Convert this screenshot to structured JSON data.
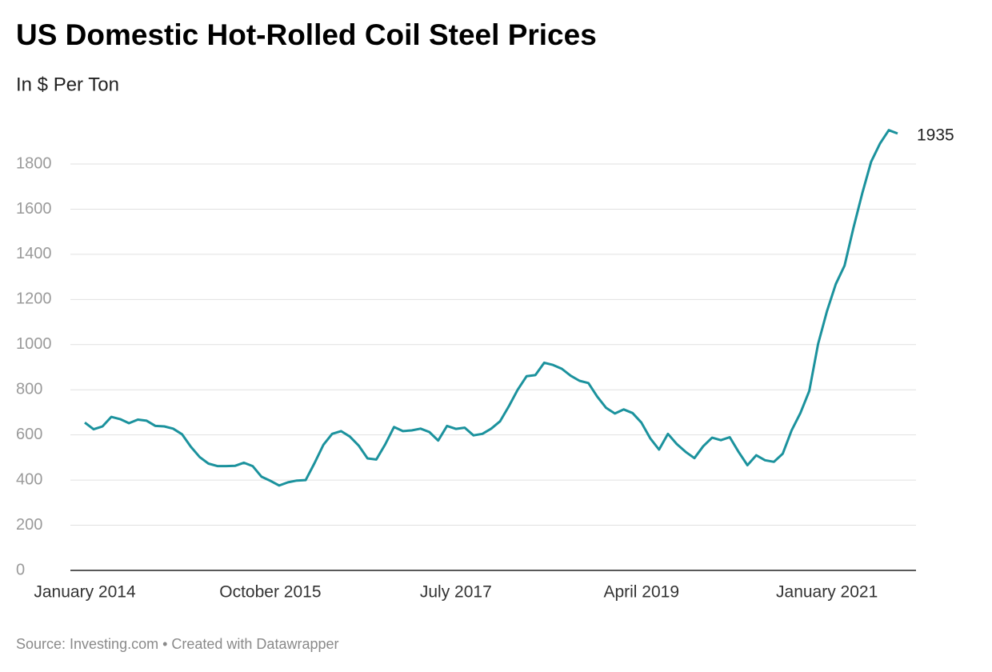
{
  "chart_data": {
    "type": "line",
    "title": "US Domestic Hot-Rolled Coil Steel Prices",
    "subtitle": "In $ Per Ton",
    "source": "Source: Investing.com • Created with Datawrapper",
    "color": "#1b929d",
    "x": [
      "2014-01",
      "2014-02",
      "2014-03",
      "2014-04",
      "2014-05",
      "2014-06",
      "2014-07",
      "2014-08",
      "2014-09",
      "2014-10",
      "2014-11",
      "2014-12",
      "2015-01",
      "2015-02",
      "2015-03",
      "2015-04",
      "2015-05",
      "2015-06",
      "2015-07",
      "2015-08",
      "2015-09",
      "2015-10",
      "2015-11",
      "2015-12",
      "2016-01",
      "2016-02",
      "2016-03",
      "2016-04",
      "2016-05",
      "2016-06",
      "2016-07",
      "2016-08",
      "2016-09",
      "2016-10",
      "2016-11",
      "2016-12",
      "2017-01",
      "2017-02",
      "2017-03",
      "2017-04",
      "2017-05",
      "2017-06",
      "2017-07",
      "2017-08",
      "2017-09",
      "2017-10",
      "2017-11",
      "2017-12",
      "2018-01",
      "2018-02",
      "2018-03",
      "2018-04",
      "2018-05",
      "2018-06",
      "2018-07",
      "2018-08",
      "2018-09",
      "2018-10",
      "2018-11",
      "2018-12",
      "2019-01",
      "2019-02",
      "2019-03",
      "2019-04",
      "2019-05",
      "2019-06",
      "2019-07",
      "2019-08",
      "2019-09",
      "2019-10",
      "2019-11",
      "2019-12",
      "2020-01",
      "2020-02",
      "2020-03",
      "2020-04",
      "2020-05",
      "2020-06",
      "2020-07",
      "2020-08",
      "2020-09",
      "2020-10",
      "2020-11",
      "2020-12",
      "2021-01",
      "2021-02",
      "2021-03",
      "2021-04",
      "2021-05",
      "2021-06",
      "2021-07",
      "2021-08",
      "2021-09"
    ],
    "values": [
      655,
      625,
      638,
      680,
      670,
      652,
      668,
      663,
      640,
      638,
      628,
      603,
      548,
      502,
      473,
      462,
      462,
      463,
      477,
      462,
      415,
      397,
      376,
      390,
      398,
      400,
      475,
      556,
      605,
      617,
      593,
      553,
      496,
      491,
      558,
      635,
      617,
      620,
      628,
      613,
      575,
      640,
      627,
      632,
      598,
      605,
      628,
      660,
      727,
      800,
      860,
      865,
      920,
      910,
      893,
      862,
      840,
      830,
      770,
      720,
      695,
      713,
      697,
      655,
      585,
      535,
      605,
      560,
      525,
      497,
      550,
      588,
      577,
      590,
      525,
      466,
      510,
      488,
      481,
      517,
      620,
      697,
      795,
      1003,
      1148,
      1268,
      1350,
      1517,
      1670,
      1810,
      1890,
      1950,
      1935
    ],
    "xlim": [
      "2014-01",
      "2021-09"
    ],
    "xticks": [
      {
        "value": "2014-01",
        "label": "January 2014"
      },
      {
        "value": "2015-10",
        "label": "October 2015"
      },
      {
        "value": "2017-07",
        "label": "July 2017"
      },
      {
        "value": "2019-04",
        "label": "April 2019"
      },
      {
        "value": "2021-01",
        "label": "January 2021"
      }
    ],
    "ylim": [
      0,
      2000
    ],
    "yticks": [
      0,
      200,
      400,
      600,
      800,
      1000,
      1200,
      1400,
      1600,
      1800
    ],
    "grid": true
  }
}
